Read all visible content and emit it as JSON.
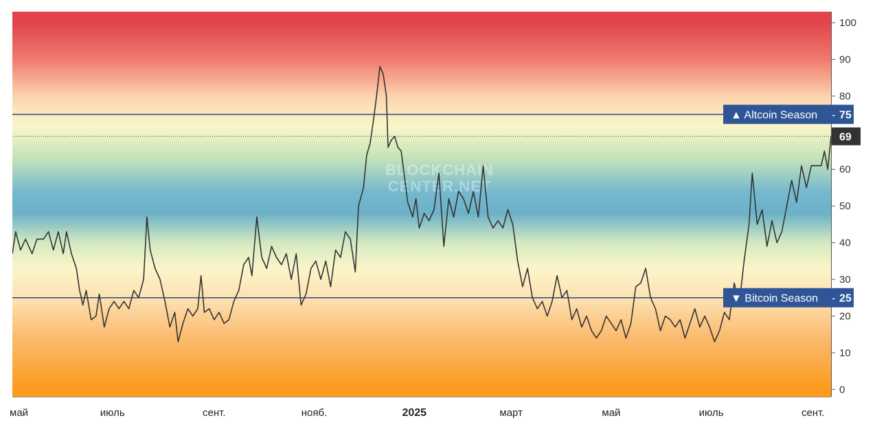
{
  "chart_data": {
    "type": "line",
    "title": "",
    "xlabel": "",
    "ylabel": "",
    "ylim": [
      -2,
      103
    ],
    "y_ticks": [
      0,
      10,
      20,
      30,
      40,
      50,
      60,
      70,
      80,
      90,
      100
    ],
    "grid": false,
    "x_ticks": [
      {
        "label": "май",
        "date": "2024-05-01",
        "bold": false
      },
      {
        "label": "июль",
        "date": "2024-07-01",
        "bold": false
      },
      {
        "label": "сент.",
        "date": "2024-09-01",
        "bold": false
      },
      {
        "label": "нояб.",
        "date": "2024-11-01",
        "bold": false
      },
      {
        "label": "2025",
        "date": "2025-01-01",
        "bold": true
      },
      {
        "label": "март",
        "date": "2025-03-01",
        "bold": false
      },
      {
        "label": "май",
        "date": "2025-05-01",
        "bold": false
      },
      {
        "label": "июль",
        "date": "2025-07-01",
        "bold": false
      },
      {
        "label": "сент.",
        "date": "2025-09-01",
        "bold": false
      }
    ],
    "background_gradient": [
      {
        "value": 100,
        "color": "#e0444c"
      },
      {
        "value": 90,
        "color": "#f07a6e"
      },
      {
        "value": 80,
        "color": "#fcd3ad"
      },
      {
        "value": 72,
        "color": "#fbf6c9"
      },
      {
        "value": 63,
        "color": "#c5e3b8"
      },
      {
        "value": 54,
        "color": "#75b9cf"
      },
      {
        "value": 48,
        "color": "#6cb1c8"
      },
      {
        "value": 40,
        "color": "#d3eac2"
      },
      {
        "value": 33,
        "color": "#fbf5c9"
      },
      {
        "value": 25,
        "color": "#fde2b3"
      },
      {
        "value": 15,
        "color": "#fbbd74"
      },
      {
        "value": 0,
        "color": "#fb9a1c"
      }
    ],
    "reference_lines": [
      {
        "name": "Altcoin Season",
        "value": 75,
        "label": "▲ Altcoin Season",
        "value_label": "75",
        "color": "#2a4a85",
        "label_bg": "#2f5597"
      },
      {
        "name": "Bitcoin Season",
        "value": 25,
        "label": "▼ Bitcoin Season",
        "value_label": "25",
        "color": "#2a4a85",
        "label_bg": "#2f5597"
      }
    ],
    "current": {
      "value": 69,
      "label": "69",
      "bg": "#333333"
    },
    "line_color": "#333333",
    "watermark": [
      "BLOCKCHAIN",
      "CENTER.NET"
    ],
    "series": [
      {
        "name": "",
        "points": [
          [
            "2024-05-01",
            37
          ],
          [
            "2024-05-03",
            43
          ],
          [
            "2024-05-06",
            38
          ],
          [
            "2024-05-09",
            41
          ],
          [
            "2024-05-13",
            37
          ],
          [
            "2024-05-16",
            41
          ],
          [
            "2024-05-20",
            41
          ],
          [
            "2024-05-23",
            43
          ],
          [
            "2024-05-26",
            38
          ],
          [
            "2024-05-29",
            43
          ],
          [
            "2024-06-01",
            37
          ],
          [
            "2024-06-03",
            43
          ],
          [
            "2024-06-06",
            37
          ],
          [
            "2024-06-09",
            33
          ],
          [
            "2024-06-11",
            27
          ],
          [
            "2024-06-13",
            23
          ],
          [
            "2024-06-15",
            27
          ],
          [
            "2024-06-18",
            19
          ],
          [
            "2024-06-21",
            20
          ],
          [
            "2024-06-23",
            26
          ],
          [
            "2024-06-26",
            17
          ],
          [
            "2024-06-29",
            22
          ],
          [
            "2024-07-02",
            24
          ],
          [
            "2024-07-05",
            22
          ],
          [
            "2024-07-08",
            24
          ],
          [
            "2024-07-11",
            22
          ],
          [
            "2024-07-14",
            27
          ],
          [
            "2024-07-17",
            25
          ],
          [
            "2024-07-20",
            30
          ],
          [
            "2024-07-22",
            47
          ],
          [
            "2024-07-24",
            38
          ],
          [
            "2024-07-27",
            33
          ],
          [
            "2024-07-30",
            30
          ],
          [
            "2024-08-02",
            24
          ],
          [
            "2024-08-05",
            17
          ],
          [
            "2024-08-08",
            21
          ],
          [
            "2024-08-10",
            13
          ],
          [
            "2024-08-13",
            18
          ],
          [
            "2024-08-16",
            22
          ],
          [
            "2024-08-19",
            20
          ],
          [
            "2024-08-22",
            22
          ],
          [
            "2024-08-24",
            31
          ],
          [
            "2024-08-26",
            21
          ],
          [
            "2024-08-29",
            22
          ],
          [
            "2024-09-01",
            19
          ],
          [
            "2024-09-04",
            21
          ],
          [
            "2024-09-07",
            18
          ],
          [
            "2024-09-10",
            19
          ],
          [
            "2024-09-13",
            24
          ],
          [
            "2024-09-16",
            27
          ],
          [
            "2024-09-19",
            34
          ],
          [
            "2024-09-22",
            36
          ],
          [
            "2024-09-24",
            31
          ],
          [
            "2024-09-27",
            47
          ],
          [
            "2024-09-30",
            36
          ],
          [
            "2024-10-03",
            33
          ],
          [
            "2024-10-06",
            39
          ],
          [
            "2024-10-09",
            36
          ],
          [
            "2024-10-12",
            34
          ],
          [
            "2024-10-15",
            37
          ],
          [
            "2024-10-18",
            30
          ],
          [
            "2024-10-21",
            37
          ],
          [
            "2024-10-24",
            23
          ],
          [
            "2024-10-27",
            26
          ],
          [
            "2024-10-30",
            33
          ],
          [
            "2024-11-02",
            35
          ],
          [
            "2024-11-05",
            30
          ],
          [
            "2024-11-08",
            35
          ],
          [
            "2024-11-11",
            28
          ],
          [
            "2024-11-14",
            38
          ],
          [
            "2024-11-17",
            36
          ],
          [
            "2024-11-20",
            43
          ],
          [
            "2024-11-23",
            41
          ],
          [
            "2024-11-26",
            32
          ],
          [
            "2024-11-28",
            50
          ],
          [
            "2024-12-01",
            55
          ],
          [
            "2024-12-03",
            64
          ],
          [
            "2024-12-05",
            67
          ],
          [
            "2024-12-07",
            73
          ],
          [
            "2024-12-09",
            80
          ],
          [
            "2024-12-11",
            88
          ],
          [
            "2024-12-13",
            86
          ],
          [
            "2024-12-15",
            80
          ],
          [
            "2024-12-16",
            66
          ],
          [
            "2024-12-18",
            68
          ],
          [
            "2024-12-20",
            69
          ],
          [
            "2024-12-22",
            66
          ],
          [
            "2024-12-24",
            65
          ],
          [
            "2024-12-26",
            58
          ],
          [
            "2024-12-28",
            51
          ],
          [
            "2024-12-31",
            47
          ],
          [
            "2025-01-02",
            52
          ],
          [
            "2025-01-04",
            44
          ],
          [
            "2025-01-07",
            48
          ],
          [
            "2025-01-10",
            46
          ],
          [
            "2025-01-13",
            49
          ],
          [
            "2025-01-16",
            59
          ],
          [
            "2025-01-19",
            39
          ],
          [
            "2025-01-22",
            52
          ],
          [
            "2025-01-25",
            47
          ],
          [
            "2025-01-28",
            54
          ],
          [
            "2025-01-31",
            52
          ],
          [
            "2025-02-03",
            48
          ],
          [
            "2025-02-06",
            54
          ],
          [
            "2025-02-09",
            47
          ],
          [
            "2025-02-12",
            61
          ],
          [
            "2025-02-15",
            47
          ],
          [
            "2025-02-18",
            44
          ],
          [
            "2025-02-21",
            46
          ],
          [
            "2025-02-24",
            44
          ],
          [
            "2025-02-27",
            49
          ],
          [
            "2025-03-02",
            45
          ],
          [
            "2025-03-05",
            35
          ],
          [
            "2025-03-08",
            28
          ],
          [
            "2025-03-11",
            33
          ],
          [
            "2025-03-14",
            25
          ],
          [
            "2025-03-17",
            22
          ],
          [
            "2025-03-20",
            24
          ],
          [
            "2025-03-23",
            20
          ],
          [
            "2025-03-26",
            24
          ],
          [
            "2025-03-29",
            31
          ],
          [
            "2025-04-01",
            25
          ],
          [
            "2025-04-04",
            27
          ],
          [
            "2025-04-07",
            19
          ],
          [
            "2025-04-10",
            22
          ],
          [
            "2025-04-13",
            17
          ],
          [
            "2025-04-16",
            20
          ],
          [
            "2025-04-19",
            16
          ],
          [
            "2025-04-22",
            14
          ],
          [
            "2025-04-25",
            16
          ],
          [
            "2025-04-28",
            20
          ],
          [
            "2025-05-01",
            18
          ],
          [
            "2025-05-04",
            16
          ],
          [
            "2025-05-07",
            19
          ],
          [
            "2025-05-10",
            14
          ],
          [
            "2025-05-13",
            18
          ],
          [
            "2025-05-16",
            28
          ],
          [
            "2025-05-19",
            29
          ],
          [
            "2025-05-22",
            33
          ],
          [
            "2025-05-25",
            25
          ],
          [
            "2025-05-28",
            22
          ],
          [
            "2025-05-31",
            16
          ],
          [
            "2025-06-03",
            20
          ],
          [
            "2025-06-06",
            19
          ],
          [
            "2025-06-09",
            17
          ],
          [
            "2025-06-12",
            19
          ],
          [
            "2025-06-15",
            14
          ],
          [
            "2025-06-18",
            18
          ],
          [
            "2025-06-21",
            22
          ],
          [
            "2025-06-24",
            17
          ],
          [
            "2025-06-27",
            20
          ],
          [
            "2025-06-30",
            17
          ],
          [
            "2025-07-03",
            13
          ],
          [
            "2025-07-06",
            16
          ],
          [
            "2025-07-09",
            21
          ],
          [
            "2025-07-12",
            19
          ],
          [
            "2025-07-15",
            29
          ],
          [
            "2025-07-18",
            23
          ],
          [
            "2025-07-21",
            35
          ],
          [
            "2025-07-24",
            45
          ],
          [
            "2025-07-26",
            59
          ],
          [
            "2025-07-29",
            45
          ],
          [
            "2025-08-01",
            49
          ],
          [
            "2025-08-04",
            39
          ],
          [
            "2025-08-07",
            46
          ],
          [
            "2025-08-10",
            40
          ],
          [
            "2025-08-13",
            43
          ],
          [
            "2025-08-16",
            50
          ],
          [
            "2025-08-19",
            57
          ],
          [
            "2025-08-22",
            51
          ],
          [
            "2025-08-25",
            61
          ],
          [
            "2025-08-28",
            55
          ],
          [
            "2025-08-31",
            61
          ],
          [
            "2025-09-03",
            61
          ],
          [
            "2025-09-06",
            61
          ],
          [
            "2025-09-08",
            65
          ],
          [
            "2025-09-10",
            60
          ],
          [
            "2025-09-12",
            69
          ]
        ]
      }
    ]
  }
}
